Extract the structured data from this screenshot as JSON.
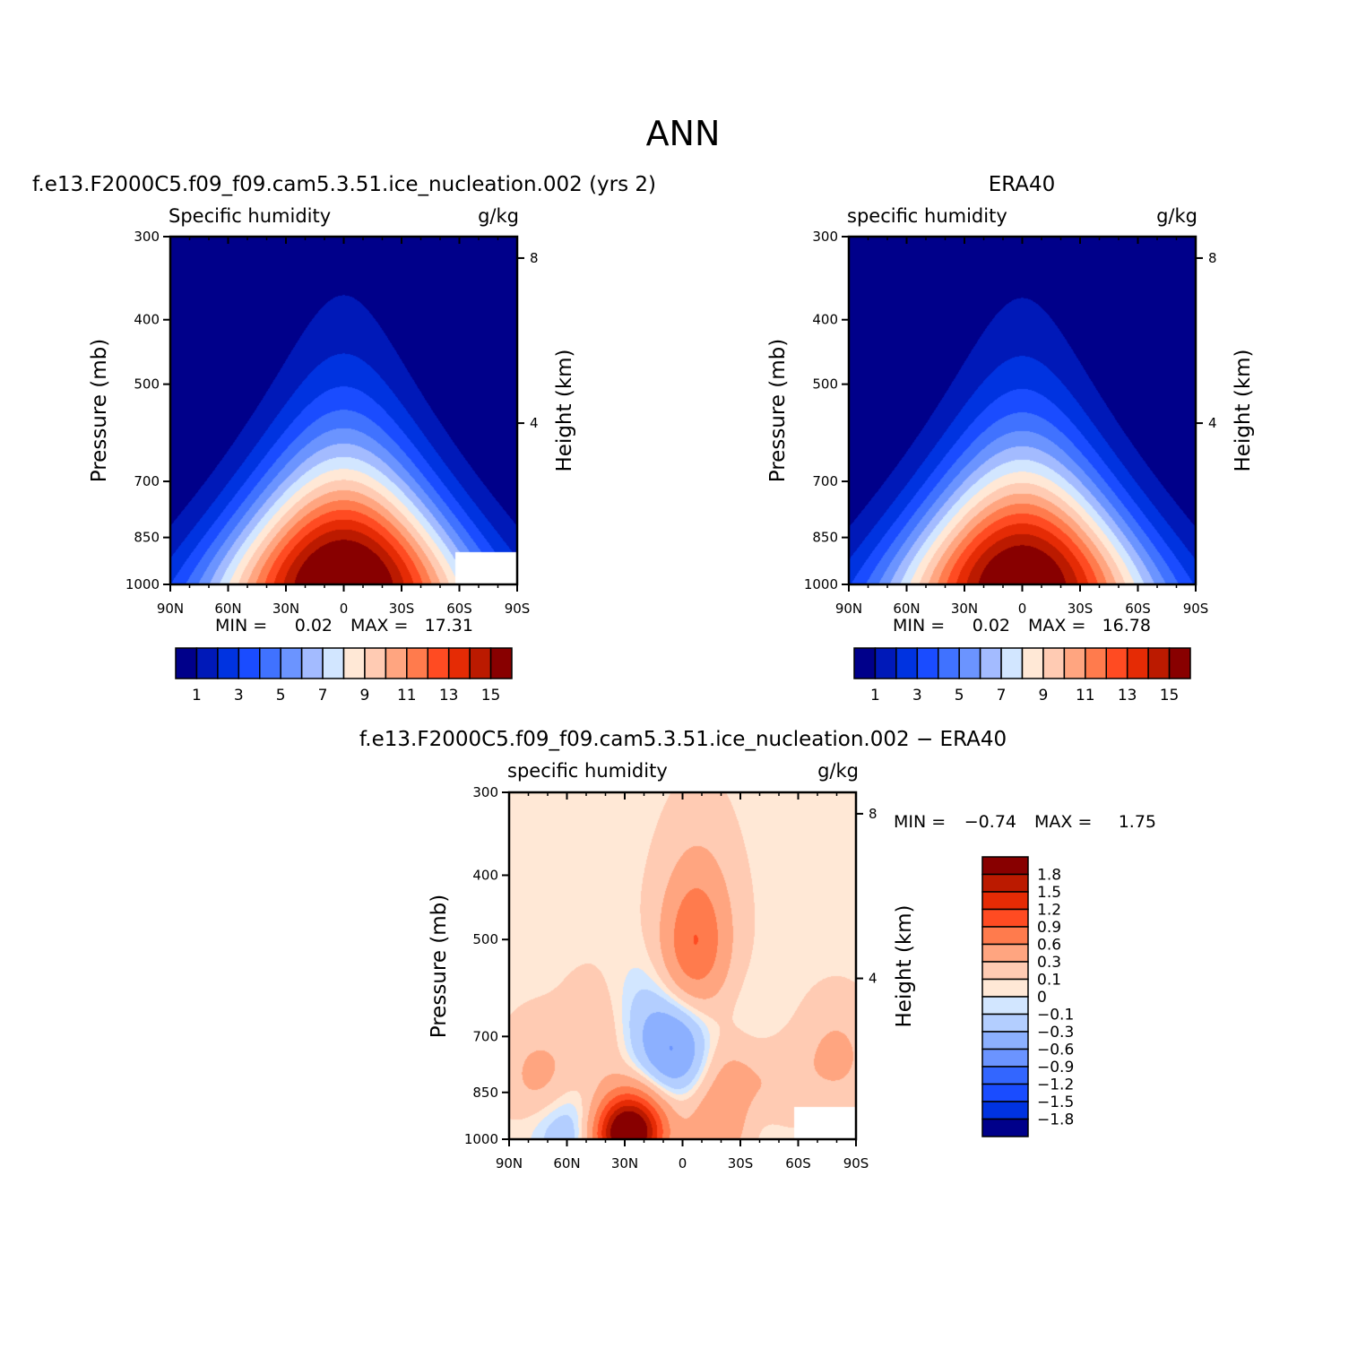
{
  "page_title": "ANN",
  "chart_data": [
    {
      "type": "heatmap",
      "title": "f.e13.F2000C5.f09_f09.cam5.3.51.ice_nucleation.002 (yrs 2)",
      "left_label": "Specific humidity",
      "right_label": "g/kg",
      "xlabel": "",
      "ylabel": "Pressure (mb)",
      "y2label": "Height (km)",
      "x_ticks": [
        "90N",
        "60N",
        "30N",
        "0",
        "30S",
        "60S",
        "90S"
      ],
      "y_ticks": [
        "300",
        "400",
        "500",
        "700",
        "850",
        "1000"
      ],
      "y2_ticks": [
        "8",
        "4"
      ],
      "stats": {
        "min_label": "MIN =",
        "min": "0.02",
        "max_label": "MAX =",
        "max": "17.31"
      },
      "peak": 17.31,
      "colorbar": {
        "orientation": "horizontal",
        "colors": [
          "#00008a",
          "#0019b8",
          "#0033e0",
          "#1a4cff",
          "#4072ff",
          "#6b94ff",
          "#a3bbff",
          "#d2e6ff",
          "#ffe8d6",
          "#ffcbb3",
          "#ffa580",
          "#ff7b4d",
          "#ff4b22",
          "#e52b05",
          "#bb1a00",
          "#880000"
        ],
        "labels": [
          "1",
          "3",
          "5",
          "7",
          "9",
          "11",
          "13",
          "15"
        ]
      }
    },
    {
      "type": "heatmap",
      "title": "ERA40",
      "left_label": "specific humidity",
      "right_label": "g/kg",
      "xlabel": "",
      "ylabel": "Pressure (mb)",
      "y2label": "Height (km)",
      "x_ticks": [
        "90N",
        "60N",
        "30N",
        "0",
        "30S",
        "60S",
        "90S"
      ],
      "y_ticks": [
        "300",
        "400",
        "500",
        "700",
        "850",
        "1000"
      ],
      "y2_ticks": [
        "8",
        "4"
      ],
      "stats": {
        "min_label": "MIN =",
        "min": "0.02",
        "max_label": "MAX =",
        "max": "16.78"
      },
      "peak": 16.78,
      "colorbar": {
        "orientation": "horizontal",
        "colors": [
          "#00008a",
          "#0019b8",
          "#0033e0",
          "#1a4cff",
          "#4072ff",
          "#6b94ff",
          "#a3bbff",
          "#d2e6ff",
          "#ffe8d6",
          "#ffcbb3",
          "#ffa580",
          "#ff7b4d",
          "#ff4b22",
          "#e52b05",
          "#bb1a00",
          "#880000"
        ],
        "labels": [
          "1",
          "3",
          "5",
          "7",
          "9",
          "11",
          "13",
          "15"
        ]
      }
    },
    {
      "type": "heatmap",
      "title": "f.e13.F2000C5.f09_f09.cam5.3.51.ice_nucleation.002 − ERA40",
      "left_label": "specific humidity",
      "right_label": "g/kg",
      "xlabel": "",
      "ylabel": "Pressure (mb)",
      "y2label": "Height (km)",
      "x_ticks": [
        "90N",
        "60N",
        "30N",
        "0",
        "30S",
        "60S",
        "90S"
      ],
      "y_ticks": [
        "300",
        "400",
        "500",
        "700",
        "850",
        "1000"
      ],
      "y2_ticks": [
        "8",
        "4"
      ],
      "stats": {
        "min_label": "MIN =",
        "min": "−0.74",
        "max_label": "MAX =",
        "max": "1.75"
      },
      "colorbar": {
        "orientation": "vertical",
        "colors": [
          "#880000",
          "#bb1a00",
          "#e52b05",
          "#ff4b22",
          "#ff7b4d",
          "#ffa580",
          "#ffcbb3",
          "#ffe8d6",
          "#d2e6ff",
          "#b3ceff",
          "#8cb0ff",
          "#6b94ff",
          "#3366ff",
          "#1a4cff",
          "#0033e0",
          "#00008a"
        ],
        "labels": [
          "1.8",
          "1.5",
          "1.2",
          "0.9",
          "0.6",
          "0.3",
          "0.1",
          "0",
          "−0.1",
          "−0.3",
          "−0.6",
          "−0.9",
          "−1.2",
          "−1.5",
          "−1.8"
        ]
      },
      "features": [
        {
          "lat": -5,
          "p": 520,
          "value": 0.6
        },
        {
          "lat": -10,
          "p": 470,
          "value": 0.3
        },
        {
          "lat": 30,
          "p": 985,
          "value": 1.6
        },
        {
          "lat": 25,
          "p": 960,
          "value": 0.9
        },
        {
          "lat": 3,
          "p": 730,
          "value": -0.6
        },
        {
          "lat": 20,
          "p": 650,
          "value": -0.2
        },
        {
          "lat": 15,
          "p": 780,
          "value": -0.1
        },
        {
          "lat": 60,
          "p": 990,
          "value": -0.3
        },
        {
          "lat": 50,
          "p": 920,
          "value": -0.1
        },
        {
          "lat": -20,
          "p": 960,
          "value": 0.5
        },
        {
          "lat": -25,
          "p": 800,
          "value": 0.3
        },
        {
          "lat": 75,
          "p": 800,
          "value": 0.3
        },
        {
          "lat": -80,
          "p": 750,
          "value": 0.3
        },
        {
          "lat": 45,
          "p": 700,
          "value": 0.2
        },
        {
          "lat": -50,
          "p": 830,
          "value": 0.2
        },
        {
          "lat": -35,
          "p": 950,
          "value": -0.15
        },
        {
          "lat": -35,
          "p": 690,
          "value": -0.1
        }
      ]
    }
  ]
}
